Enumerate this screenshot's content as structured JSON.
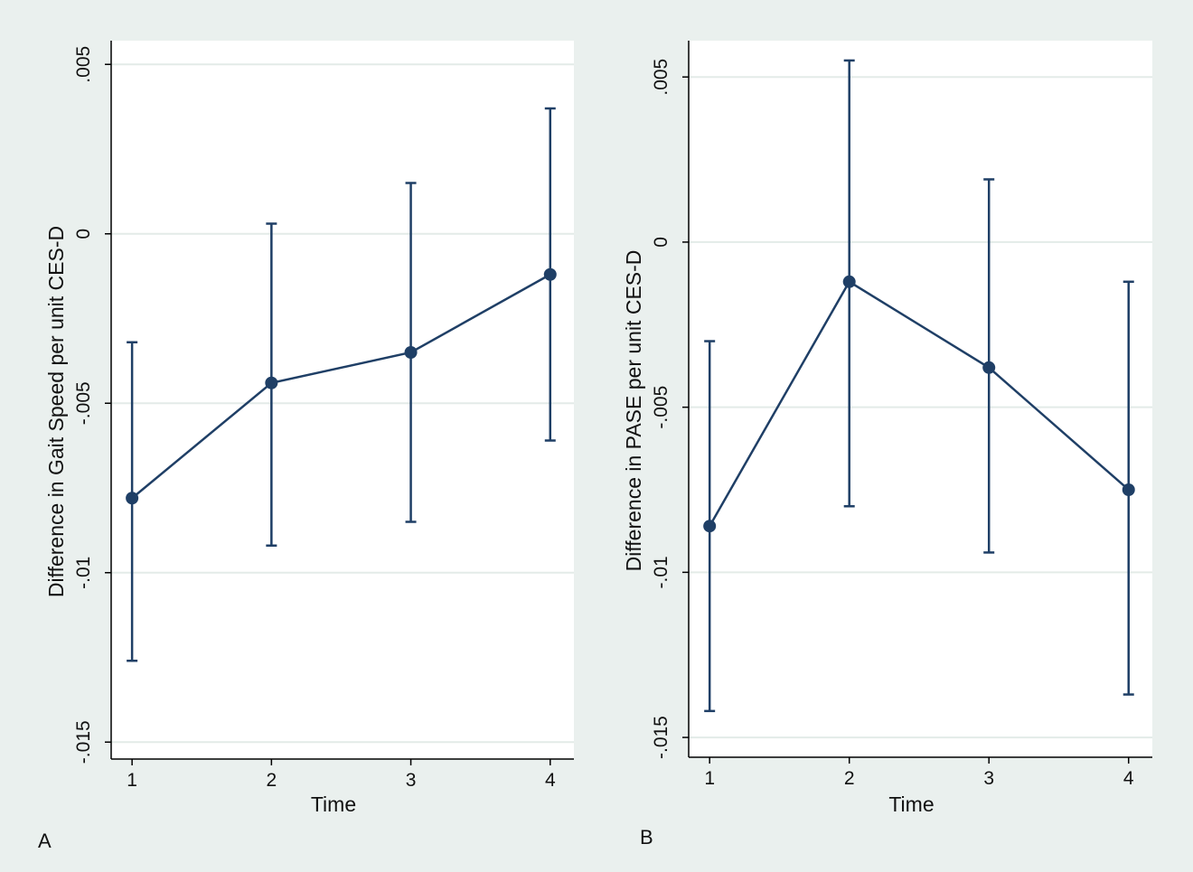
{
  "panel_labels": [
    "A",
    "B"
  ],
  "chart_data": [
    {
      "type": "line",
      "panel": "A",
      "x": [
        1,
        2,
        3,
        4
      ],
      "xlabel": "Time",
      "ylabel": "Difference in Gait Speed per unit CES-D",
      "xticks": [
        "1",
        "2",
        "3",
        "4"
      ],
      "yticks": [
        -0.015,
        -0.01,
        -0.005,
        0,
        0.005
      ],
      "ytick_labels": [
        "-.015",
        "-.01",
        "-.005",
        "0",
        ".005"
      ],
      "xlim": [
        0.85,
        4.17
      ],
      "ylim": [
        -0.0155,
        0.0057
      ],
      "grid": true,
      "series": [
        {
          "values": [
            -0.0078,
            -0.0044,
            -0.0035,
            -0.0012
          ],
          "ci_lower": [
            -0.0126,
            -0.0092,
            -0.0085,
            -0.0061
          ],
          "ci_upper": [
            -0.0032,
            0.0003,
            0.0015,
            0.0037
          ]
        }
      ]
    },
    {
      "type": "line",
      "panel": "B",
      "x": [
        1,
        2,
        3,
        4
      ],
      "xlabel": "Time",
      "ylabel": "Difference in PASE per unit CES-D",
      "xticks": [
        "1",
        "2",
        "3",
        "4"
      ],
      "yticks": [
        -0.015,
        -0.01,
        -0.005,
        0,
        0.005
      ],
      "ytick_labels": [
        "-.015",
        "-.01",
        "-.005",
        "0",
        ".005"
      ],
      "xlim": [
        0.85,
        4.17
      ],
      "ylim": [
        -0.0156,
        0.0061
      ],
      "grid": true,
      "series": [
        {
          "values": [
            -0.0086,
            -0.0012,
            -0.0038,
            -0.0075
          ],
          "ci_lower": [
            -0.0142,
            -0.008,
            -0.0094,
            -0.0137
          ],
          "ci_upper": [
            -0.003,
            0.0055,
            0.0019,
            -0.0012
          ]
        }
      ]
    }
  ],
  "colors": {
    "background": "#eaf0ee",
    "plot_area": "#ffffff",
    "series": "#1f3f66",
    "grid": "#e3ebe8",
    "axis": "#000000"
  }
}
